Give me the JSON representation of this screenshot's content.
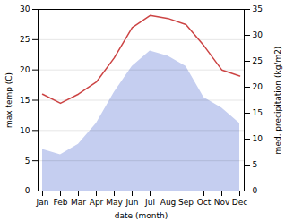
{
  "chart_data": {
    "type": "line",
    "categories": [
      "Jan",
      "Feb",
      "Mar",
      "Apr",
      "May",
      "Jun",
      "Jul",
      "Aug",
      "Sep",
      "Oct",
      "Nov",
      "Dec"
    ],
    "xlabel": "date (month)",
    "ylabel": "max temp (C)",
    "y2label": "med. precipitation (kg/m2)",
    "series": [
      {
        "type": "area",
        "axis": "y2",
        "color": "#c5cef0",
        "values": [
          8,
          7,
          9,
          13,
          19,
          24,
          27,
          26,
          24,
          18,
          16,
          13
        ]
      },
      {
        "type": "line",
        "color": "#cc4444",
        "values": [
          16,
          14.5,
          16,
          18,
          22,
          27,
          29,
          28.5,
          27.5,
          24,
          20,
          19
        ]
      }
    ],
    "ylim": [
      0,
      30
    ],
    "yticks": [
      0,
      5,
      10,
      15,
      20,
      25,
      30
    ],
    "y2lim": [
      0,
      35
    ],
    "y2ticks": [
      0,
      5,
      10,
      15,
      20,
      25,
      30,
      35
    ],
    "grid": true
  }
}
